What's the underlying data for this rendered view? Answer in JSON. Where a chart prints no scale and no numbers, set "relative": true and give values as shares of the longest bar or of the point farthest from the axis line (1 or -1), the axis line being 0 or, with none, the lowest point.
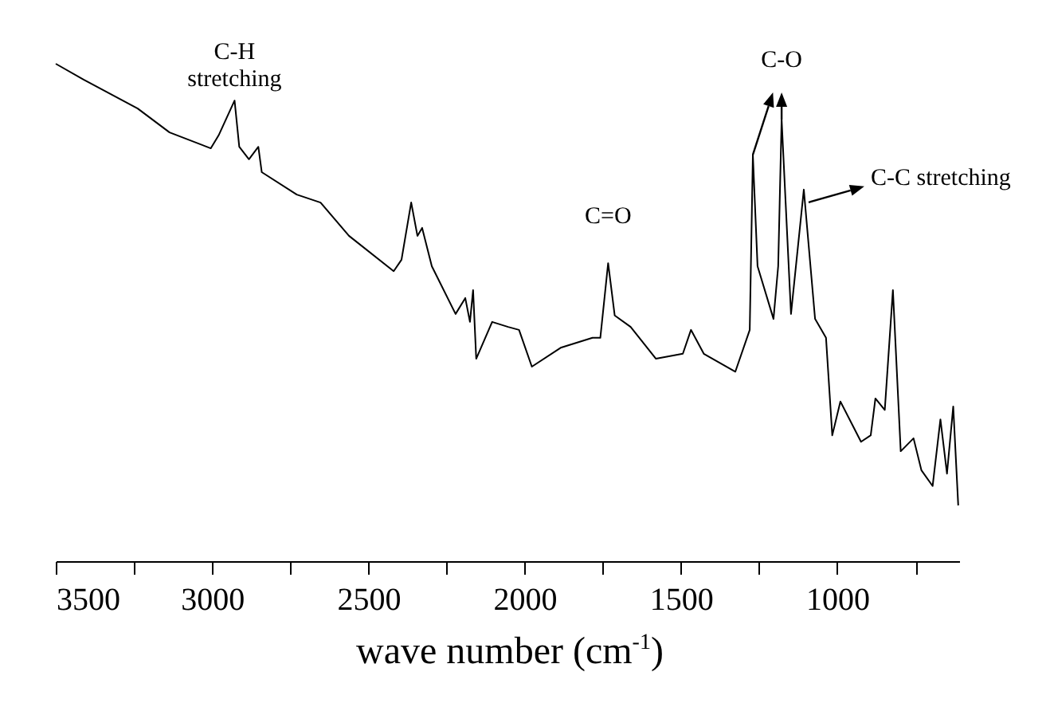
{
  "chart_data": {
    "type": "line",
    "relative": true,
    "xlabel": "wave number (cm$^{-1}$)",
    "xlim": [
      3500,
      610
    ],
    "xticks": [
      3500,
      {
        "value": 3250,
        "label": null
      },
      3000,
      {
        "value": 2750,
        "label": null
      },
      2500,
      {
        "value": 2250,
        "label": null
      },
      2000,
      {
        "value": 1750,
        "label": null
      },
      1500,
      {
        "value": 1250,
        "label": null
      },
      1000,
      {
        "value": 750,
        "label": null
      }
    ],
    "grid": false,
    "marker": "none",
    "line_style": "solid",
    "series": [
      {
        "color": "#000000",
        "x": [
          3500,
          3411,
          3238,
          3136,
          3004,
          2979,
          2928,
          2913,
          2882,
          2852,
          2841,
          2729,
          2653,
          2562,
          2419,
          2394,
          2363,
          2343,
          2328,
          2297,
          2221,
          2190,
          2175,
          2165,
          2155,
          2104,
          2053,
          2018,
          1977,
          1885,
          1783,
          1758,
          1733,
          1712,
          1661,
          1580,
          1494,
          1468,
          1427,
          1326,
          1280,
          1270,
          1255,
          1204,
          1189,
          1178,
          1148,
          1107,
          1071,
          1036,
          1016,
          990,
          924,
          893,
          878,
          848,
          822,
          797,
          756,
          731,
          695,
          670,
          649,
          629,
          613
        ],
        "values": [
          1.0,
          0.968,
          0.91,
          0.862,
          0.83,
          0.856,
          0.926,
          0.833,
          0.808,
          0.833,
          0.782,
          0.737,
          0.721,
          0.654,
          0.583,
          0.606,
          0.721,
          0.654,
          0.67,
          0.593,
          0.497,
          0.529,
          0.481,
          0.545,
          0.407,
          0.481,
          0.471,
          0.465,
          0.391,
          0.429,
          0.449,
          0.449,
          0.599,
          0.494,
          0.471,
          0.407,
          0.417,
          0.465,
          0.417,
          0.381,
          0.465,
          0.817,
          0.593,
          0.487,
          0.593,
          0.888,
          0.497,
          0.747,
          0.487,
          0.449,
          0.253,
          0.321,
          0.24,
          0.253,
          0.327,
          0.304,
          0.545,
          0.221,
          0.247,
          0.183,
          0.151,
          0.285,
          0.176,
          0.311,
          0.112
        ]
      }
    ],
    "annotations": [
      {
        "text": "C-H stretching",
        "x": 2928,
        "y": 0.926
      },
      {
        "text": "C-O",
        "x": 1178,
        "y": 0.888
      },
      {
        "text": "C=O",
        "x": 1733,
        "y": 0.599
      },
      {
        "text": "C-C stretching",
        "x": 1107,
        "y": 0.747
      }
    ]
  }
}
